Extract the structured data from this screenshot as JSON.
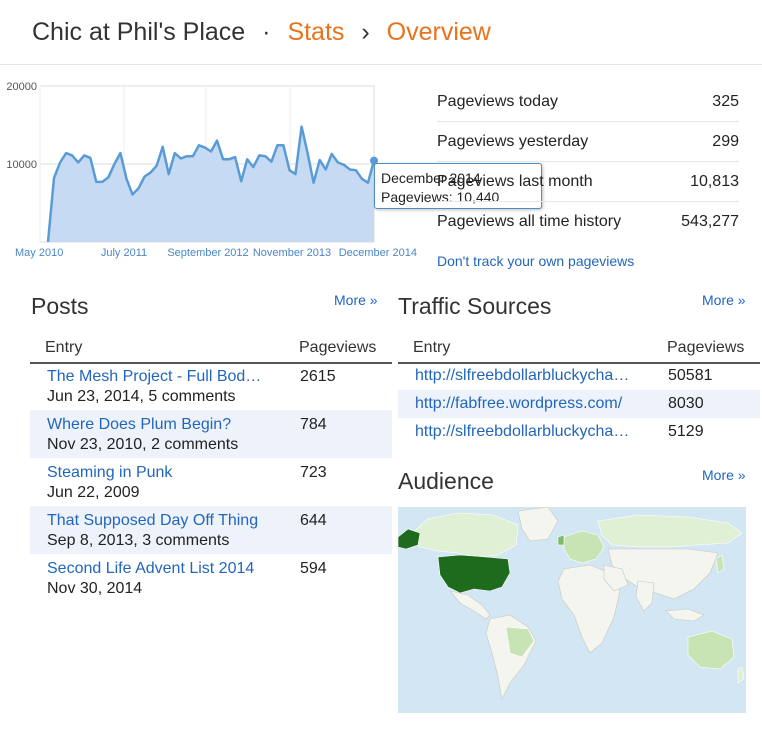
{
  "header": {
    "blog_name": "Chic at Phil's Place",
    "separator": "·",
    "stats_link": "Stats",
    "chevron": "›",
    "overview_link": "Overview"
  },
  "chart_data": {
    "type": "area",
    "title": "",
    "xlabel": "",
    "ylabel": "",
    "ylim": [
      0,
      20000
    ],
    "y_ticks": [
      "20000",
      "10000"
    ],
    "x_tick_labels": [
      "May 2010",
      "July 2011",
      "September 2012",
      "November 2013",
      "December 2014"
    ],
    "grid": true,
    "color": "#5b9bd5",
    "fill_color": "#c6dbf3",
    "values": [
      0,
      8200,
      10200,
      11400,
      11100,
      10200,
      11100,
      10800,
      7700,
      7700,
      8300,
      10000,
      11400,
      8100,
      6100,
      6900,
      8400,
      8900,
      9800,
      12200,
      8700,
      11400,
      10700,
      11000,
      11000,
      12400,
      12100,
      11600,
      13000,
      10600,
      10600,
      10900,
      7800,
      10600,
      9600,
      11100,
      11000,
      10300,
      12400,
      12400,
      9200,
      8700,
      14800,
      11400,
      7600,
      10500,
      9300,
      11300,
      10200,
      9900,
      9300,
      9200,
      8100,
      7600,
      10440
    ]
  },
  "tooltip": {
    "title": "December 2014",
    "text": "Pageviews: 10,440"
  },
  "stats": [
    {
      "label": "Pageviews today",
      "value": "325"
    },
    {
      "label": "Pageviews yesterday",
      "value": "299"
    },
    {
      "label": "Pageviews last month",
      "value": "10,813"
    },
    {
      "label": "Pageviews all time history",
      "value": "543,277"
    }
  ],
  "track_link": "Don't track your own pageviews",
  "posts": {
    "title": "Posts",
    "more": "More »",
    "col_entry": "Entry",
    "col_pageviews": "Pageviews",
    "rows": [
      {
        "title": "The Mesh Project - Full Bod…",
        "meta": "Jun 23, 2014, 5 comments",
        "pageviews": "2615"
      },
      {
        "title": "Where Does Plum Begin?",
        "meta": "Nov 23, 2010, 2 comments",
        "pageviews": "784"
      },
      {
        "title": "Steaming in Punk",
        "meta": "Jun 22, 2009",
        "pageviews": "723"
      },
      {
        "title": "That Supposed Day Off Thing",
        "meta": "Sep 8, 2013, 3 comments",
        "pageviews": "644"
      },
      {
        "title": "Second Life Advent List 2014",
        "meta": "Nov 30, 2014",
        "pageviews": "594"
      }
    ]
  },
  "traffic": {
    "title": "Traffic Sources",
    "more": "More »",
    "col_entry": "Entry",
    "col_pageviews": "Pageviews",
    "rows": [
      {
        "url": "http://slfreebdollarbluckycha…",
        "pageviews": "50581"
      },
      {
        "url": "http://fabfree.wordpress.com/",
        "pageviews": "8030"
      },
      {
        "url": "http://slfreebdollarbluckycha…",
        "pageviews": "5129"
      }
    ]
  },
  "audience": {
    "title": "Audience",
    "more": "More »",
    "ocean_color": "#d3e6f4",
    "land_color": "#f5f5f0",
    "low_color": "#c8e3b4",
    "high_color": "#1e6b1e"
  }
}
